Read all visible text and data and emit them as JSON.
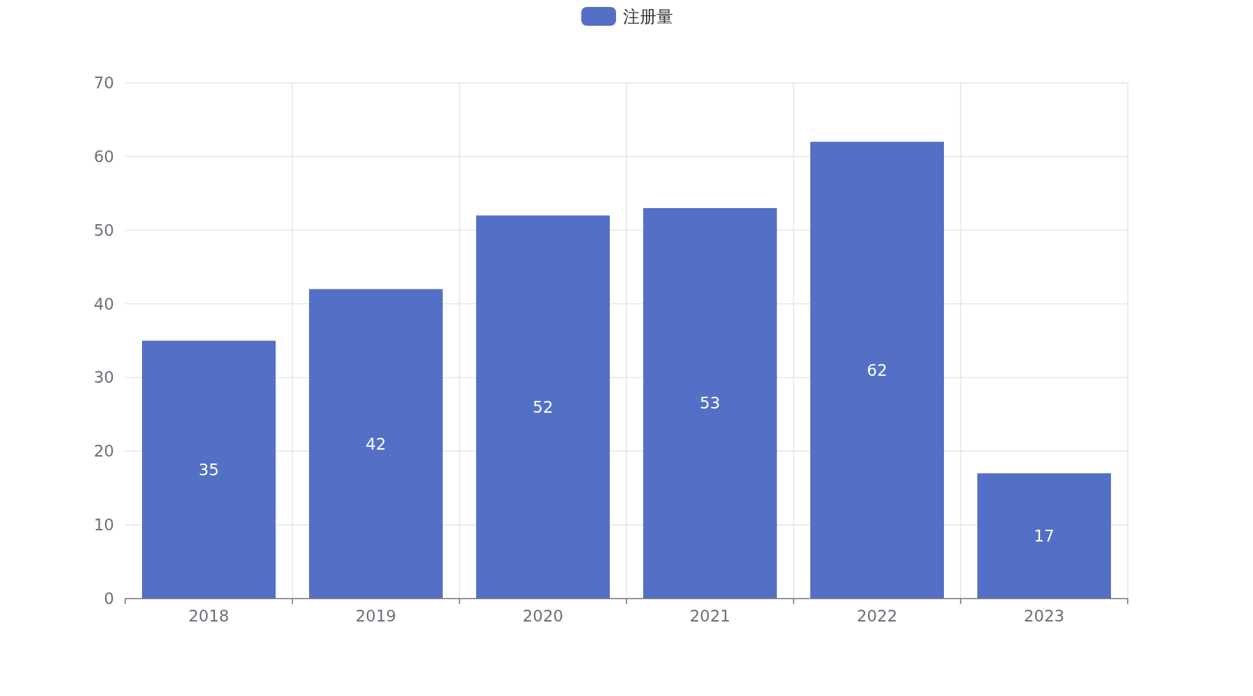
{
  "chart_data": {
    "type": "bar",
    "categories": [
      "2018",
      "2019",
      "2020",
      "2021",
      "2022",
      "2023"
    ],
    "series": [
      {
        "name": "注册量",
        "color": "#5470c6",
        "values": [
          35,
          42,
          52,
          53,
          62,
          17
        ]
      }
    ],
    "ylim": [
      0,
      70
    ],
    "yticks": [
      0,
      10,
      20,
      30,
      40,
      50,
      60,
      70
    ],
    "grid": true,
    "legend": "top",
    "data_labels": true
  }
}
